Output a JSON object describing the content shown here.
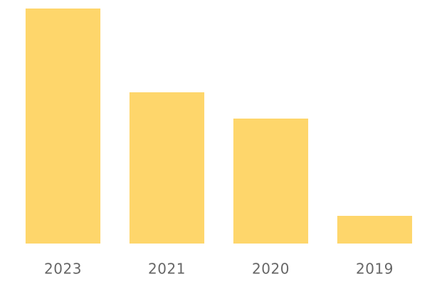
{
  "chart_data": {
    "type": "bar",
    "categories": [
      "2023",
      "2021",
      "2020",
      "2019"
    ],
    "values": [
      331,
      213,
      176,
      39
    ],
    "color": "#fed66b",
    "ylim": [
      0,
      331
    ]
  }
}
